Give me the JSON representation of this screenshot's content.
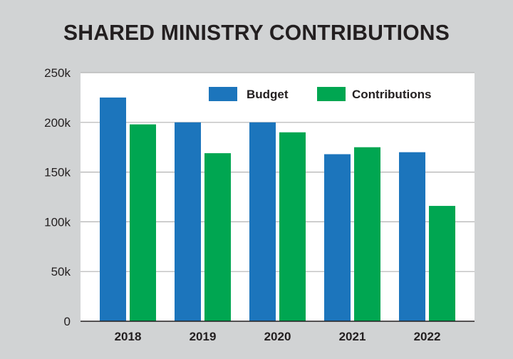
{
  "chart_data": {
    "type": "bar",
    "title": "SHARED MINISTRY CONTRIBUTIONS",
    "xlabel": "",
    "ylabel": "",
    "categories": [
      "2018",
      "2019",
      "2020",
      "2021",
      "2022"
    ],
    "series": [
      {
        "name": "Budget",
        "color": "#1c75bc",
        "values": [
          225000,
          200000,
          200000,
          168000,
          170000
        ]
      },
      {
        "name": "Contributions",
        "color": "#00a651",
        "values": [
          198000,
          169000,
          190000,
          175000,
          116000
        ]
      }
    ],
    "ylim": [
      0,
      250000
    ],
    "yticks": [
      0,
      50000,
      100000,
      150000,
      200000,
      250000
    ],
    "ytick_labels": [
      "0",
      "50k",
      "100k",
      "150k",
      "200k",
      "250k"
    ],
    "grid": true,
    "legend_position": "top-right",
    "background_color": "#d1d3d4",
    "plot_background_color": "#ffffff"
  }
}
